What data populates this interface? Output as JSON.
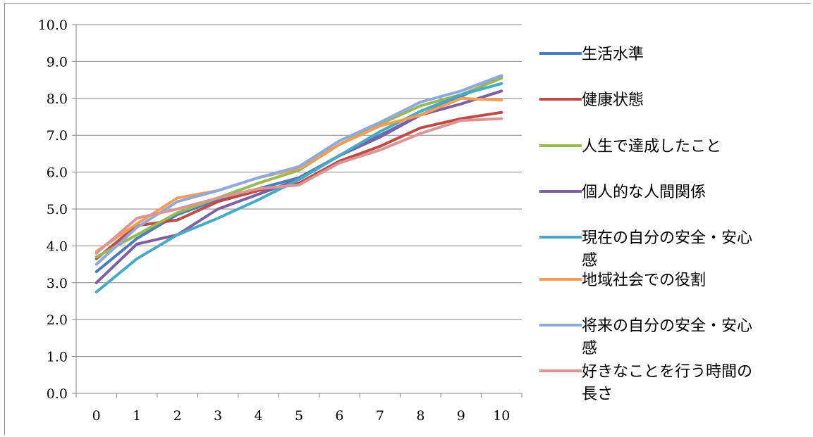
{
  "chart_data": {
    "type": "line",
    "title": "",
    "xlabel": "",
    "ylabel": "",
    "x": [
      "0",
      "1",
      "2",
      "3",
      "4",
      "5",
      "6",
      "7",
      "8",
      "9",
      "10"
    ],
    "ylim": [
      0,
      10
    ],
    "yticks": [
      "0.0",
      "1.0",
      "2.0",
      "3.0",
      "4.0",
      "5.0",
      "6.0",
      "7.0",
      "8.0",
      "9.0",
      "10.0"
    ],
    "grid": "horizontal",
    "legend_position": "right",
    "series": [
      {
        "name": "生活水準",
        "color": "#4a7ebb",
        "values": [
          3.3,
          4.2,
          4.85,
          5.25,
          5.55,
          5.85,
          6.45,
          7.0,
          7.55,
          8.05,
          8.6
        ]
      },
      {
        "name": "健康状態",
        "color": "#be4b48",
        "values": [
          3.65,
          4.55,
          4.7,
          5.2,
          5.5,
          5.7,
          6.3,
          6.7,
          7.2,
          7.45,
          7.62
        ]
      },
      {
        "name": "人生で達成したこと",
        "color": "#98b954",
        "values": [
          3.7,
          4.3,
          4.9,
          5.3,
          5.7,
          6.05,
          6.75,
          7.3,
          7.8,
          8.1,
          8.55
        ]
      },
      {
        "name": "個人的な人間関係",
        "color": "#7d60a0",
        "values": [
          3.0,
          4.05,
          4.3,
          5.0,
          5.4,
          5.8,
          6.45,
          6.95,
          7.55,
          7.85,
          8.2
        ]
      },
      {
        "name": "現在の自分の安全・安心感",
        "legend_lines": [
          "現在の自分の安全・安心",
          "感"
        ],
        "color": "#46aac5",
        "values": [
          2.75,
          3.65,
          4.3,
          4.75,
          5.25,
          5.8,
          6.45,
          7.1,
          7.65,
          8.1,
          8.4
        ]
      },
      {
        "name": "地域社会での役割",
        "color": "#f59d56",
        "values": [
          3.85,
          4.6,
          5.3,
          5.5,
          5.85,
          6.1,
          6.75,
          7.25,
          7.55,
          8.0,
          7.95
        ]
      },
      {
        "name": "将来の自分の安全・安心感",
        "legend_lines": [
          "将来の自分の安全・安心",
          "感"
        ],
        "color": "#8ea9db",
        "values": [
          3.5,
          4.5,
          5.2,
          5.5,
          5.85,
          6.15,
          6.85,
          7.35,
          7.9,
          8.2,
          8.62
        ]
      },
      {
        "name": "好きなことを行う時間の長さ",
        "legend_lines": [
          "好きなことを行う時間の",
          "長さ"
        ],
        "color": "#da9694",
        "values": [
          3.8,
          4.75,
          5.0,
          5.3,
          5.55,
          5.65,
          6.25,
          6.6,
          7.05,
          7.4,
          7.45
        ]
      }
    ]
  }
}
